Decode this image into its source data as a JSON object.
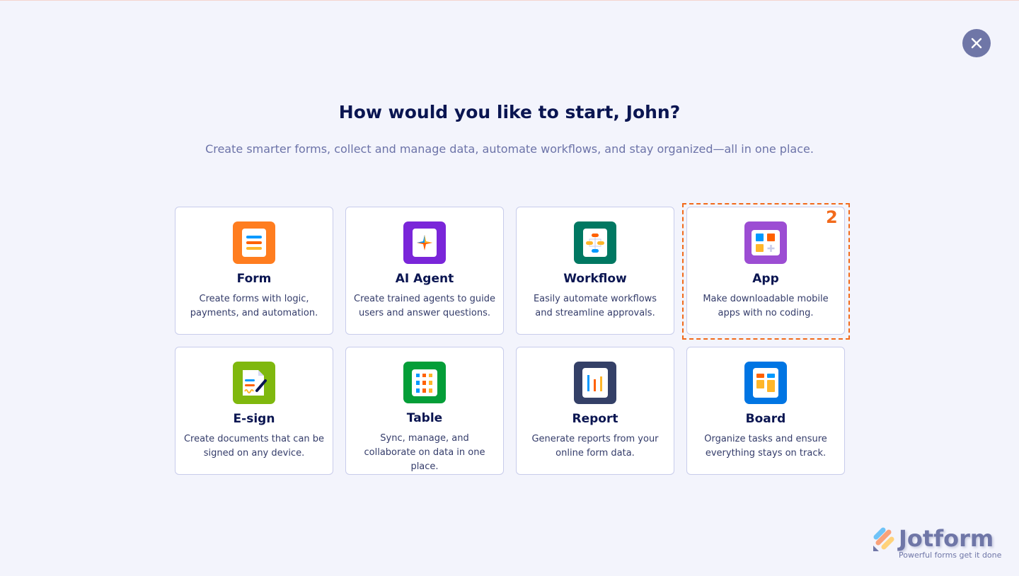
{
  "header": {
    "title": "How would you like to start, John?",
    "subtitle": "Create smarter forms, collect and manage data, automate workflows, and stay organized—all in one place."
  },
  "close_icon": "close-icon",
  "cards": [
    {
      "title": "Form",
      "description": "Create forms with logic, payments, and automation.",
      "icon": "form-icon",
      "color": "#ff7d1f"
    },
    {
      "title": "AI Agent",
      "description": "Create trained agents to guide users and answer questions.",
      "icon": "ai-agent-icon",
      "color": "#7a26d9"
    },
    {
      "title": "Workflow",
      "description": "Easily automate workflows and streamline approvals.",
      "icon": "workflow-icon",
      "color": "#007862"
    },
    {
      "title": "App",
      "description": "Make downloadable mobile apps with no coding.",
      "icon": "app-icon",
      "color": "#9c4dd3"
    },
    {
      "title": "E-sign",
      "description": "Create documents that can be signed on any device.",
      "icon": "esign-icon",
      "color": "#7fb80e"
    },
    {
      "title": "Table",
      "description": "Sync, manage, and collaborate on data in one place.",
      "icon": "table-icon",
      "color": "#049e38"
    },
    {
      "title": "Report",
      "description": "Generate reports from your online form data.",
      "icon": "report-icon",
      "color": "#344067"
    },
    {
      "title": "Board",
      "description": "Organize tasks and ensure everything stays on track.",
      "icon": "board-icon",
      "color": "#0075e3"
    }
  ],
  "highlight": {
    "label": "2",
    "color": "#f26a1b"
  },
  "logo": {
    "name": "Jotform",
    "tagline": "Powerful forms get it done"
  }
}
